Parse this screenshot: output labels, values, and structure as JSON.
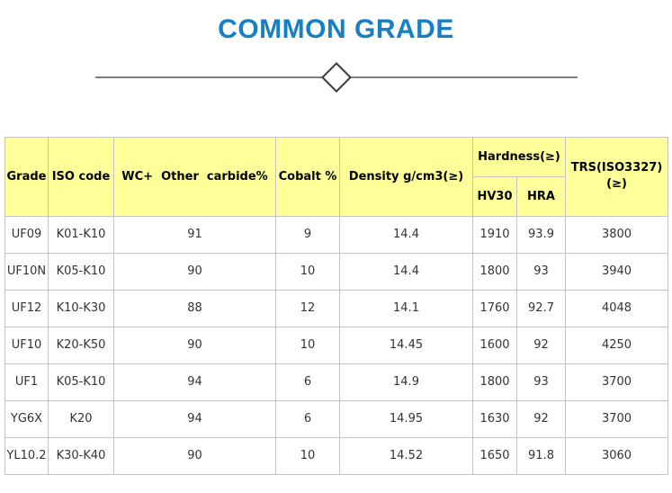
{
  "page": {
    "title": "COMMON GRADE"
  },
  "colors": {
    "title_blue": "#1780c2",
    "header_yellow": "#ffff99",
    "table_border_gray": "#c3c3c3",
    "divider_gray": "#7d7d7d",
    "body_text": "#333333"
  },
  "chart_data": {
    "type": "table",
    "title": "COMMON GRADE",
    "headers": {
      "grade": "Grade",
      "iso_code": "ISO code",
      "wc_other_carbide": "WC+  Other  carbide%",
      "cobalt": "Cobalt %",
      "density": "Density g/cm3(≥)",
      "hardness_group": "Hardness(≥)",
      "hv30": "HV30",
      "hra": "HRA",
      "trs_line1": "TRS(ISO3327)",
      "trs_line2": "(≥)"
    },
    "column_keys": [
      "grade",
      "iso-code",
      "wc-other-carbide",
      "cobalt",
      "density",
      "hv30",
      "hra",
      "trs"
    ],
    "rows": [
      [
        "UF09",
        "K01-K10",
        "91",
        "9",
        "14.4",
        "1910",
        "93.9",
        "3800"
      ],
      [
        "UF10N",
        "K05-K10",
        "90",
        "10",
        "14.4",
        "1800",
        "93",
        "3940"
      ],
      [
        "UF12",
        "K10-K30",
        "88",
        "12",
        "14.1",
        "1760",
        "92.7",
        "4048"
      ],
      [
        "UF10",
        "K20-K50",
        "90",
        "10",
        "14.45",
        "1600",
        "92",
        "4250"
      ],
      [
        "UF1",
        "K05-K10",
        "94",
        "6",
        "14.9",
        "1800",
        "93",
        "3700"
      ],
      [
        "YG6X",
        "K20",
        "94",
        "6",
        "14.95",
        "1630",
        "92",
        "3700"
      ],
      [
        "YL10.2",
        "K30-K40",
        "90",
        "10",
        "14.52",
        "1650",
        "91.8",
        "3060"
      ]
    ]
  }
}
